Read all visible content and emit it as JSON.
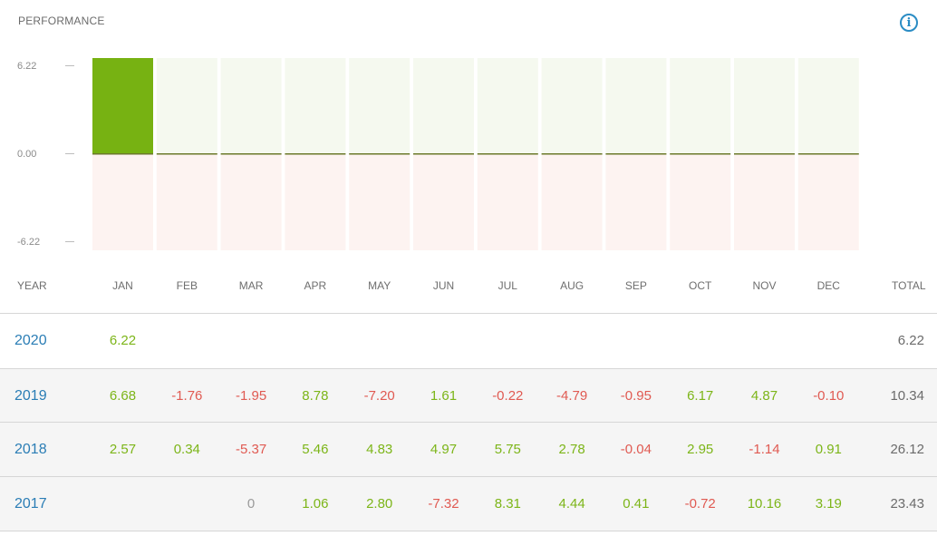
{
  "header": {
    "title": "PERFORMANCE",
    "info_icon": "i"
  },
  "chart_data": {
    "type": "bar",
    "categories": [
      "JAN",
      "FEB",
      "MAR",
      "APR",
      "MAY",
      "JUN",
      "JUL",
      "AUG",
      "SEP",
      "OCT",
      "NOV",
      "DEC"
    ],
    "values": [
      6.22,
      0,
      0,
      0,
      0,
      0,
      0,
      0,
      0,
      0,
      0,
      0
    ],
    "ylim": [
      -6.22,
      6.22
    ],
    "yticks": [
      "6.22",
      "0.00",
      "-6.22"
    ],
    "colors": {
      "positive": "#77b212",
      "positive_bg": "#f5f9ef",
      "negative_bg": "#fdf3f1",
      "zero_line": "#6b7a2a"
    }
  },
  "table": {
    "year_header": "YEAR",
    "total_header": "TOTAL",
    "months": [
      "JAN",
      "FEB",
      "MAR",
      "APR",
      "MAY",
      "JUN",
      "JUL",
      "AUG",
      "SEP",
      "OCT",
      "NOV",
      "DEC"
    ],
    "rows": [
      {
        "year": "2020",
        "values": [
          "6.22",
          "",
          "",
          "",
          "",
          "",
          "",
          "",
          "",
          "",
          "",
          ""
        ],
        "total": "6.22"
      },
      {
        "year": "2019",
        "values": [
          "6.68",
          "-1.76",
          "-1.95",
          "8.78",
          "-7.20",
          "1.61",
          "-0.22",
          "-4.79",
          "-0.95",
          "6.17",
          "4.87",
          "-0.10"
        ],
        "total": "10.34"
      },
      {
        "year": "2018",
        "values": [
          "2.57",
          "0.34",
          "-5.37",
          "5.46",
          "4.83",
          "4.97",
          "5.75",
          "2.78",
          "-0.04",
          "2.95",
          "-1.14",
          "0.91"
        ],
        "total": "26.12"
      },
      {
        "year": "2017",
        "values": [
          "",
          "",
          "0",
          "1.06",
          "2.80",
          "-7.32",
          "8.31",
          "4.44",
          "0.41",
          "-0.72",
          "10.16",
          "3.19"
        ],
        "total": "23.43"
      }
    ]
  }
}
